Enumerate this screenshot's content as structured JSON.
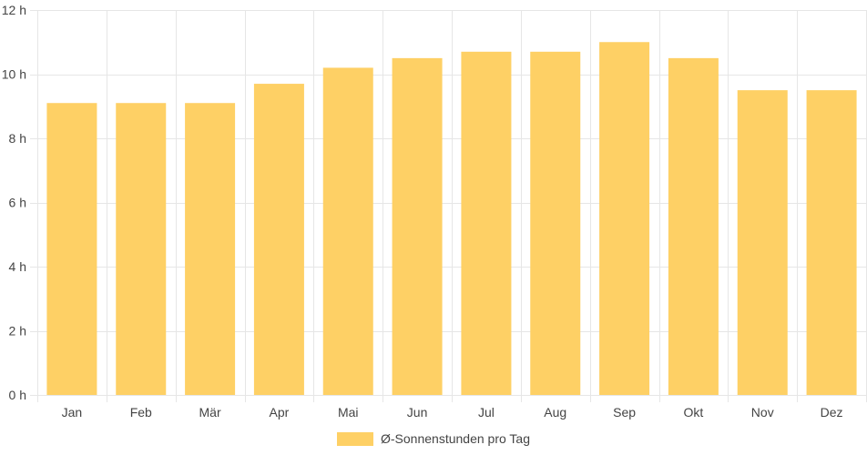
{
  "colors": {
    "bar": "#fed065",
    "grid": "#e6e6e6",
    "text": "#444444"
  },
  "chart_data": {
    "type": "bar",
    "categories": [
      "Jan",
      "Feb",
      "Mär",
      "Apr",
      "Mai",
      "Jun",
      "Jul",
      "Aug",
      "Sep",
      "Okt",
      "Nov",
      "Dez"
    ],
    "series": [
      {
        "name": "Ø-Sonnenstunden pro Tag",
        "values": [
          9.1,
          9.1,
          9.1,
          9.7,
          10.2,
          10.5,
          10.7,
          10.7,
          11.0,
          10.5,
          9.5,
          9.5
        ]
      }
    ],
    "ylim": [
      0,
      12
    ],
    "yticks": [
      0,
      2,
      4,
      6,
      8,
      10,
      12
    ],
    "ytick_suffix": " h",
    "grid": true,
    "legend_position": "bottom"
  }
}
